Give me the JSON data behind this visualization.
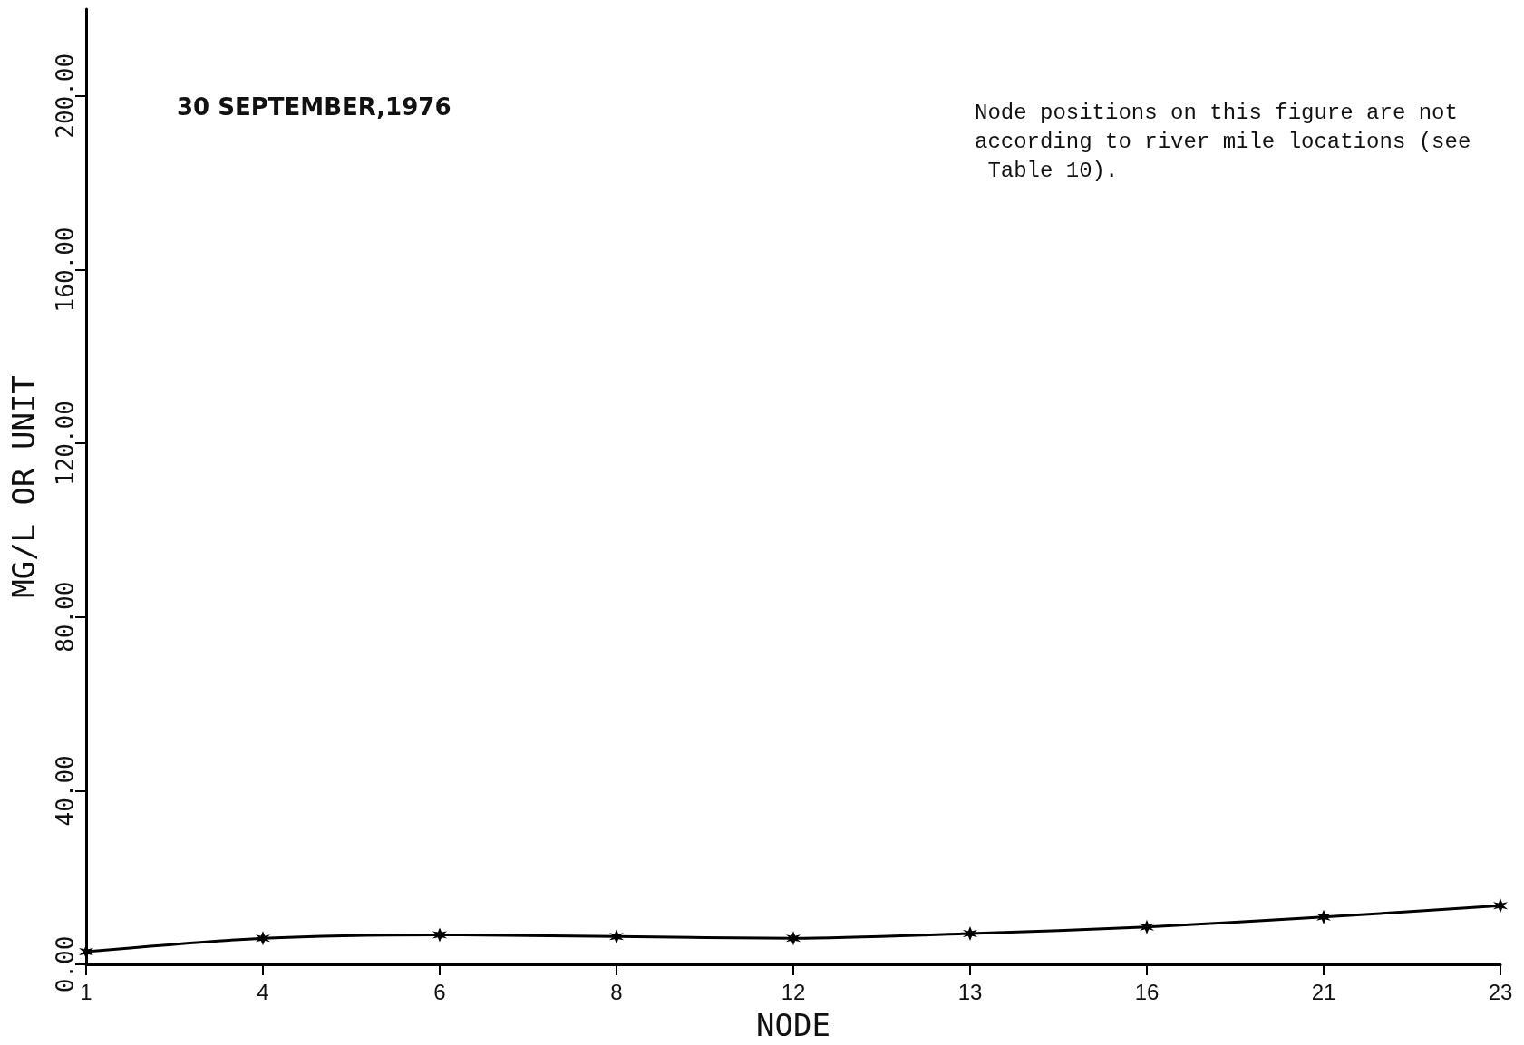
{
  "chart_data": {
    "type": "line",
    "title": "30 SEPTEMBER,1976",
    "xlabel": "NODE",
    "ylabel": "MG/L OR UNIT",
    "annotations": [
      "Node positions on this figure are not according to river mile locations (see Table 10)."
    ],
    "categories": [
      "1",
      "4",
      "6",
      "8",
      "12",
      "13",
      "16",
      "21",
      "23"
    ],
    "series": [
      {
        "color": "#000000",
        "values": [
          2.9,
          6.0,
          6.8,
          6.4,
          6.0,
          7.1,
          8.6,
          10.9,
          13.5
        ]
      }
    ],
    "ylim": [
      0,
      220
    ],
    "yticks": [
      {
        "value": 0,
        "label": "0.00"
      },
      {
        "value": 40,
        "label": "40.00"
      },
      {
        "value": 80,
        "label": "80.00"
      },
      {
        "value": 120,
        "label": "120.00"
      },
      {
        "value": 160,
        "label": "160.00"
      },
      {
        "value": 200,
        "label": "200.00"
      }
    ],
    "grid": false,
    "marker": "cross",
    "line_style": "solid"
  }
}
